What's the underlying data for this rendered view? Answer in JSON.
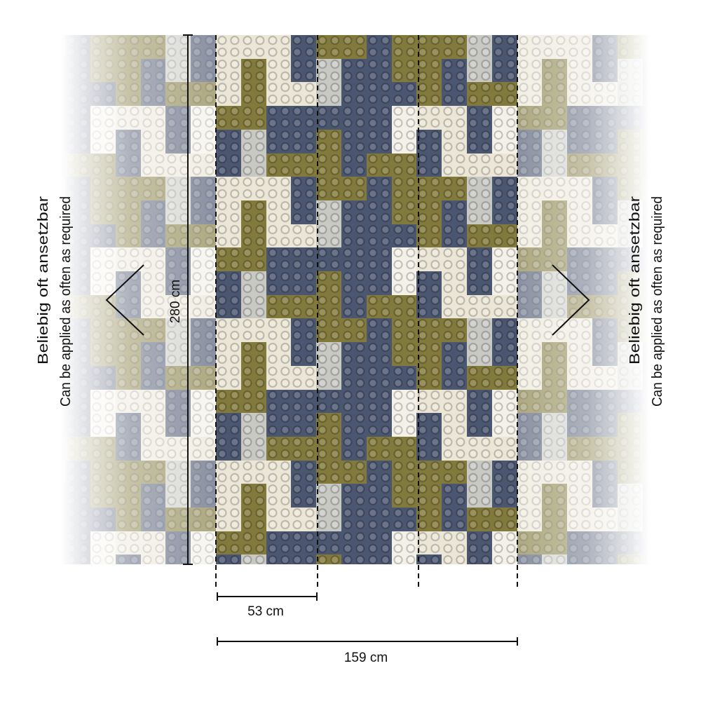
{
  "palette": {
    "c": "#ebe6d6",
    "w": "#f4f1e8",
    "n": "#4b5670",
    "o": "#827a3c",
    "g": "#c9c9c4"
  },
  "pattern": [
    [
      "c",
      "c",
      "c",
      "n",
      "o",
      "o",
      "n",
      "o",
      "o",
      "o",
      "g",
      "n"
    ],
    [
      "c",
      "o",
      "c",
      "n",
      "g",
      "n",
      "n",
      "o",
      "o",
      "n",
      "g",
      "n"
    ],
    [
      "c",
      "o",
      "c",
      "c",
      "g",
      "n",
      "n",
      "n",
      "o",
      "n",
      "o",
      "o"
    ],
    [
      "o",
      "o",
      "n",
      "n",
      "n",
      "n",
      "n",
      "w",
      "c",
      "c",
      "n",
      "w"
    ],
    [
      "n",
      "g",
      "n",
      "n",
      "o",
      "n",
      "n",
      "w",
      "n",
      "c",
      "n",
      "w"
    ],
    [
      "n",
      "g",
      "o",
      "o",
      "o",
      "n",
      "o",
      "o",
      "n",
      "c",
      "c",
      "c"
    ]
  ],
  "dimensions": {
    "height_label": "280 cm",
    "panel_width_label": "53 cm",
    "total_width_label": "159 cm"
  },
  "side_note": {
    "line1": "Beliebig oft ansetzbar",
    "line2": "Can be applied as often as required"
  },
  "icons": {
    "left_arrow": "chevron-left-icon",
    "right_arrow": "chevron-right-icon"
  }
}
